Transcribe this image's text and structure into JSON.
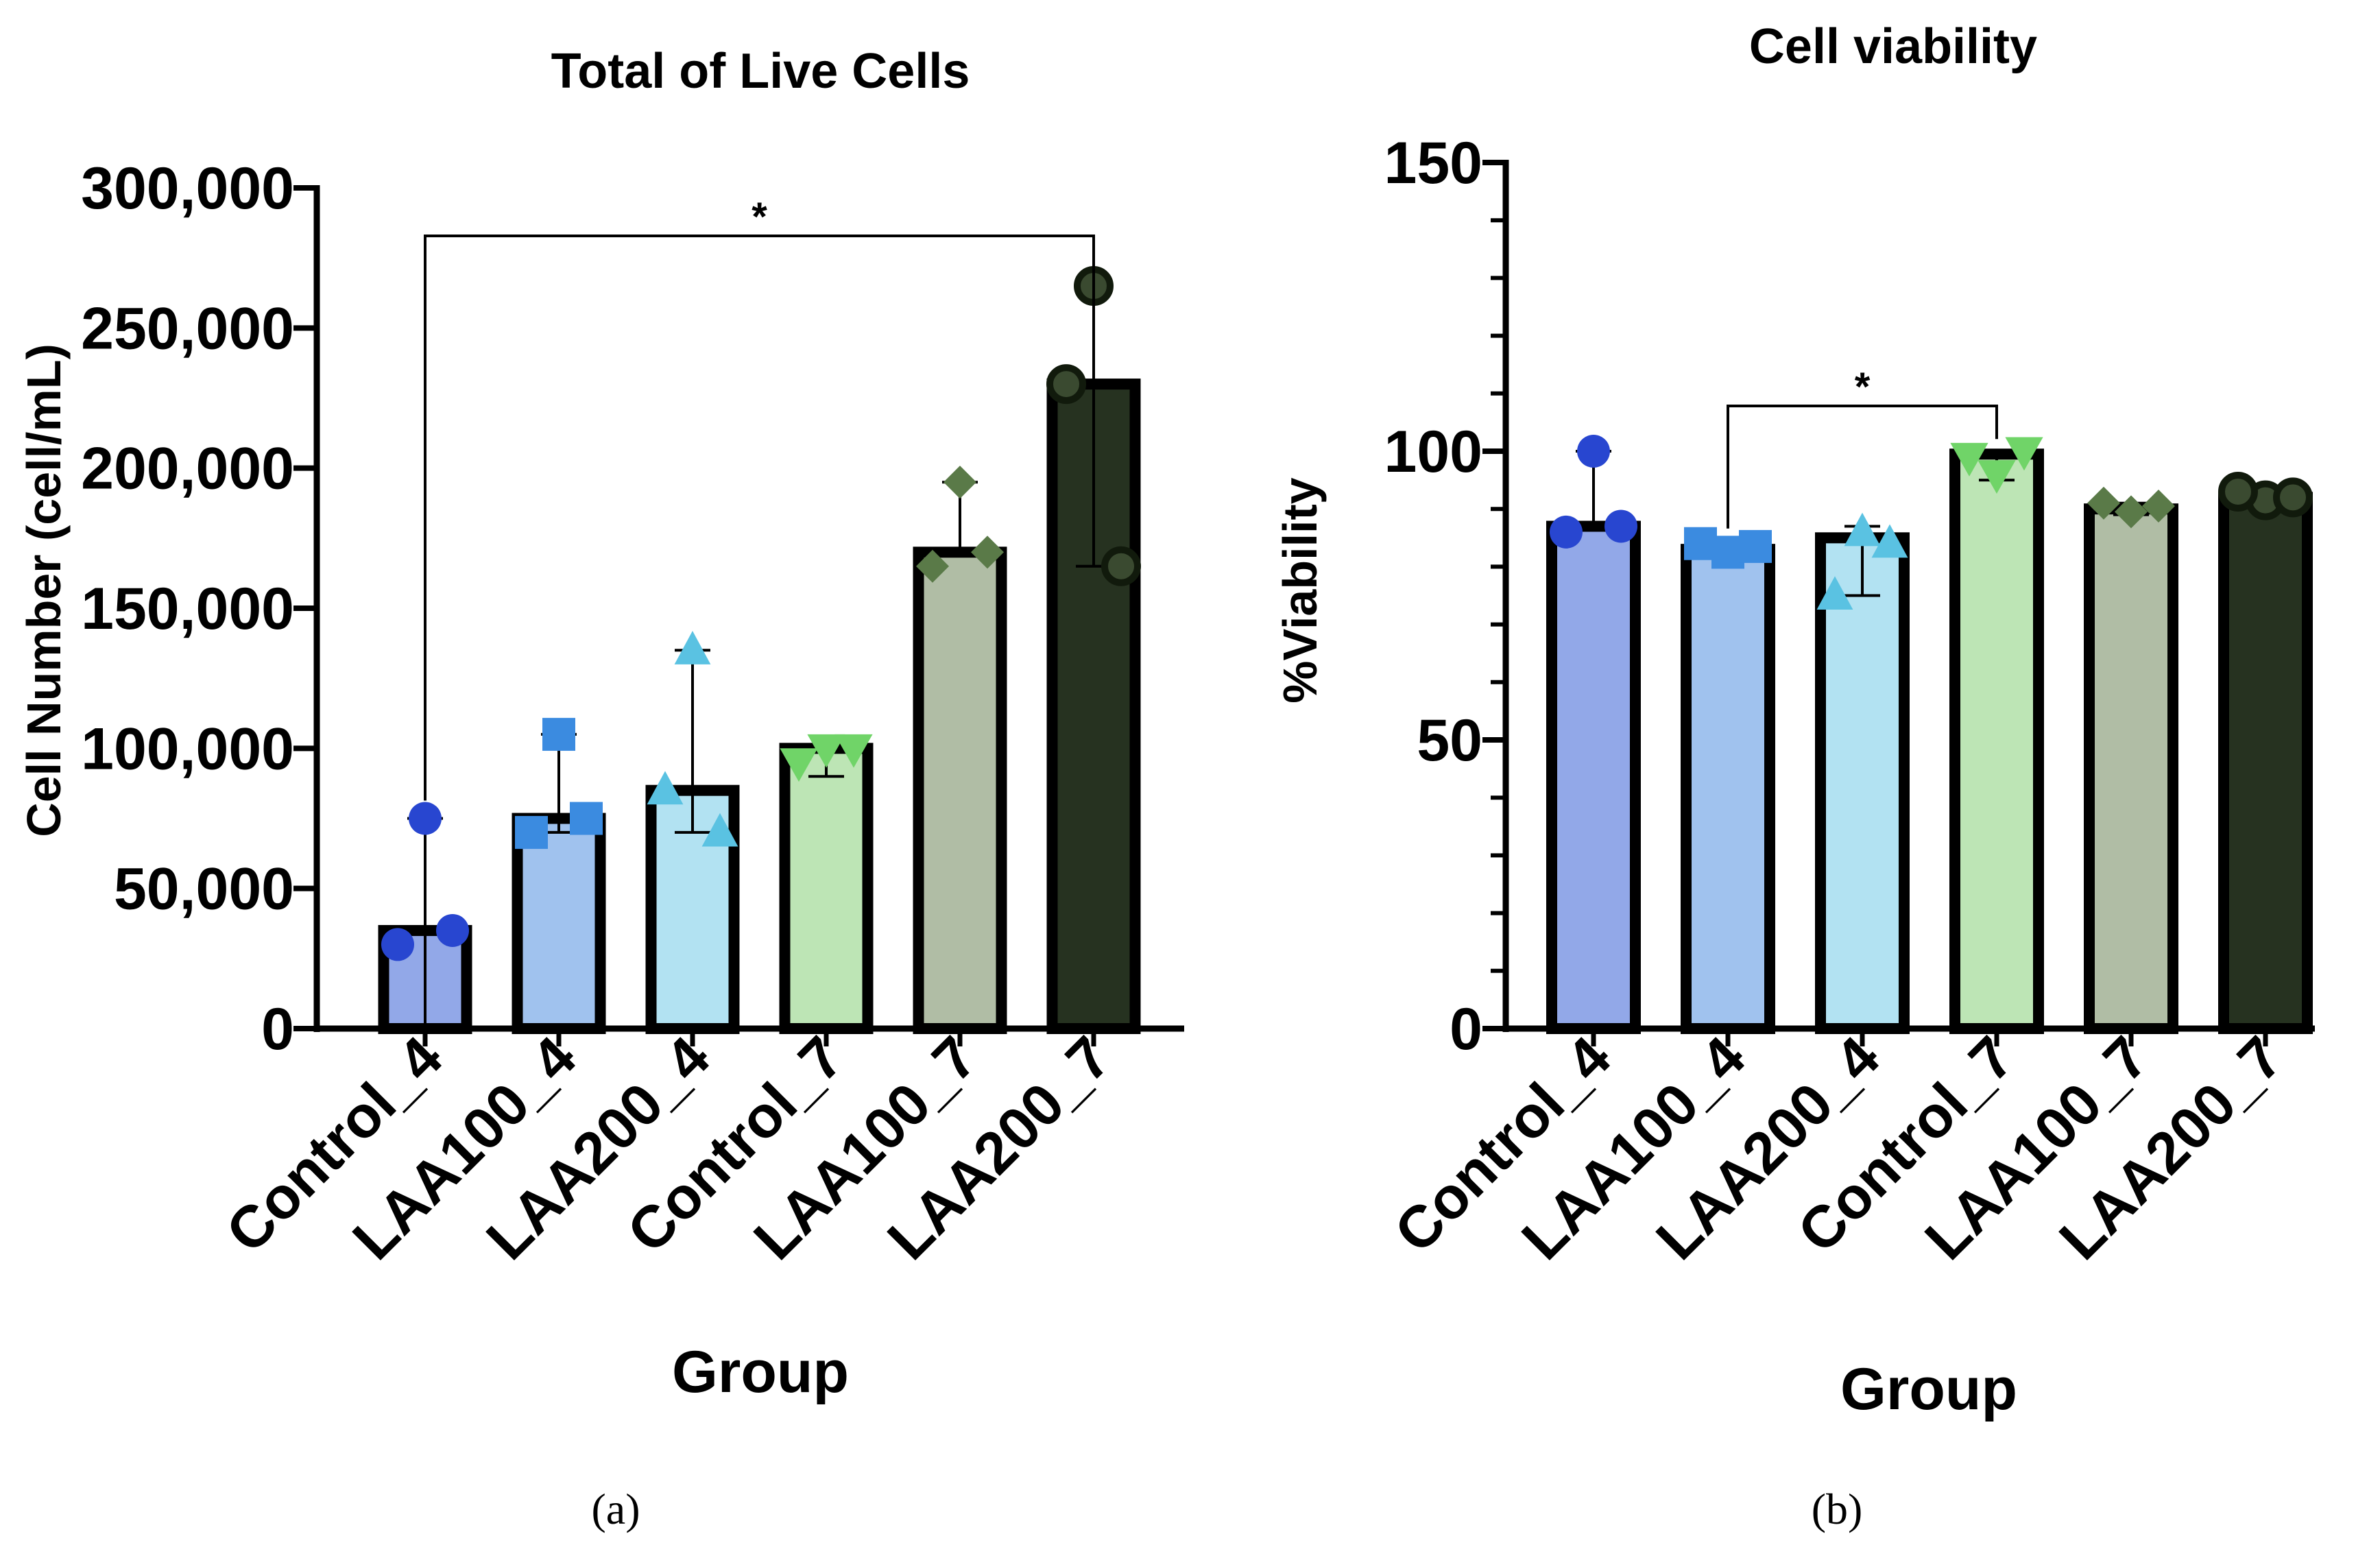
{
  "chart_data": [
    {
      "type": "bar",
      "title": "Total of Live Cells",
      "xlabel": "Group",
      "ylabel": "Cell Number (cell/mL)",
      "ylim": [
        0,
        300000
      ],
      "yticks": [
        0,
        50000,
        100000,
        150000,
        200000,
        250000,
        300000
      ],
      "ytick_labels": [
        "0",
        "50,000",
        "100,000",
        "150,000",
        "200,000",
        "250,000",
        "300,000"
      ],
      "categories": [
        "Control_4",
        "LAA100_4",
        "LAA200_4",
        "Control_7",
        "LAA100_7",
        "LAA200_7"
      ],
      "values": [
        35000,
        75000,
        85000,
        100000,
        170000,
        230000
      ],
      "error_low": [
        0,
        70000,
        70000,
        90000,
        170000,
        165000
      ],
      "error_high": [
        75000,
        105000,
        135000,
        100000,
        195000,
        265000
      ],
      "points": [
        [
          75000,
          30000,
          35000
        ],
        [
          105000,
          70000,
          75000
        ],
        [
          135000,
          85000,
          70000
        ],
        [
          100000,
          95000,
          100000
        ],
        [
          195000,
          165000,
          170000
        ],
        [
          265000,
          230000,
          165000
        ]
      ],
      "markers": [
        "circle",
        "square",
        "triangle-up",
        "triangle-down",
        "diamond",
        "circle-open"
      ],
      "bar_colors": [
        "#92a8e8",
        "#a0c2ee",
        "#b2e2f2",
        "#bde5b5",
        "#b0bda5",
        "#263220"
      ],
      "marker_colors": [
        "#2846d0",
        "#3b8be0",
        "#5ac2e2",
        "#70d468",
        "#5a7a48",
        "#263220"
      ],
      "significance": [
        {
          "from": "Control_4",
          "to": "LAA200_7",
          "label": "*"
        }
      ],
      "caption": "(a)"
    },
    {
      "type": "bar",
      "title": "Cell viability",
      "xlabel": "Group",
      "ylabel": "%Viability",
      "ylim": [
        0,
        150
      ],
      "yticks": [
        0,
        50,
        100,
        150
      ],
      "ytick_labels": [
        "0",
        "50",
        "100",
        "150"
      ],
      "categories": [
        "Control_4",
        "LAA100_4",
        "LAA200_4",
        "Control_7",
        "LAA100_7",
        "LAA200_7"
      ],
      "values": [
        87,
        83,
        85,
        99.5,
        90,
        92
      ],
      "error_low": [
        87,
        82,
        75,
        95,
        89,
        91
      ],
      "error_high": [
        100,
        84,
        87,
        100,
        91,
        93
      ],
      "points": [
        [
          100,
          86,
          87
        ],
        [
          82.5,
          84,
          83.5
        ],
        [
          86,
          75,
          84
        ],
        [
          96,
          99,
          100
        ],
        [
          89.5,
          91,
          90.5
        ],
        [
          91.5,
          93,
          92
        ]
      ],
      "markers": [
        "circle",
        "square",
        "triangle-up",
        "triangle-down",
        "diamond",
        "circle-open"
      ],
      "bar_colors": [
        "#92a8e8",
        "#a0c2ee",
        "#b2e2f2",
        "#bde5b5",
        "#b0bda5",
        "#263220"
      ],
      "marker_colors": [
        "#2846d0",
        "#3b8be0",
        "#5ac2e2",
        "#70d468",
        "#5a7a48",
        "#263220"
      ],
      "significance": [
        {
          "from": "LAA100_4",
          "to": "Control_7",
          "label": "*"
        }
      ],
      "caption": "(b)"
    }
  ]
}
